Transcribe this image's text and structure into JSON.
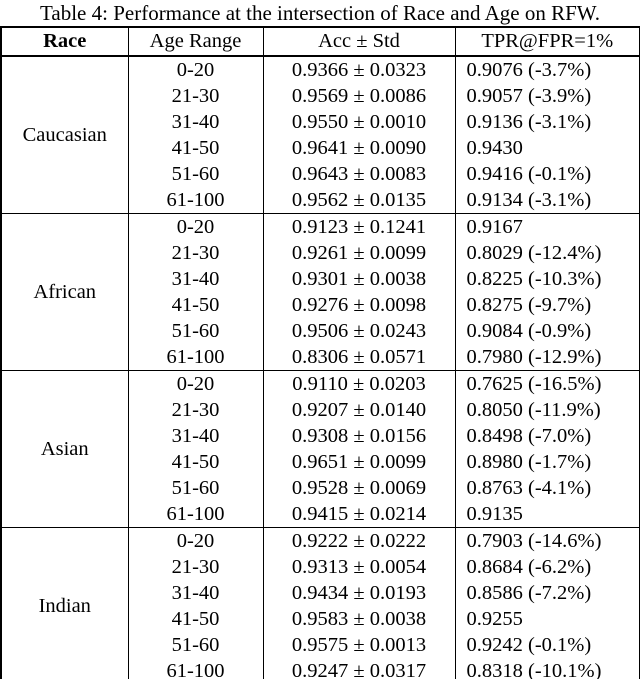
{
  "title": "Table 4: Performance at the intersection of Race and Age on RFW.",
  "table": {
    "headers": [
      "Race",
      "Age Range",
      "Acc ± Std",
      "TPR@FPR=1%"
    ],
    "groups": [
      {
        "race": "Caucasian",
        "rows": [
          {
            "age": "0-20",
            "acc": "0.9366 ± 0.0323",
            "tpr": "0.9076 (-3.7%)"
          },
          {
            "age": "21-30",
            "acc": "0.9569 ± 0.0086",
            "tpr": "0.9057 (-3.9%)"
          },
          {
            "age": "31-40",
            "acc": "0.9550 ± 0.0010",
            "tpr": "0.9136 (-3.1%)"
          },
          {
            "age": "41-50",
            "acc": "0.9641 ± 0.0090",
            "tpr": "0.9430"
          },
          {
            "age": "51-60",
            "acc": "0.9643 ± 0.0083",
            "tpr": "0.9416 (-0.1%)"
          },
          {
            "age": "61-100",
            "acc": "0.9562 ± 0.0135",
            "tpr": "0.9134 (-3.1%)"
          }
        ]
      },
      {
        "race": "African",
        "rows": [
          {
            "age": "0-20",
            "acc": "0.9123 ± 0.1241",
            "tpr": "0.9167"
          },
          {
            "age": "21-30",
            "acc": "0.9261 ± 0.0099",
            "tpr": "0.8029 (-12.4%)"
          },
          {
            "age": "31-40",
            "acc": "0.9301 ± 0.0038",
            "tpr": "0.8225 (-10.3%)"
          },
          {
            "age": "41-50",
            "acc": "0.9276 ± 0.0098",
            "tpr": "0.8275 (-9.7%)"
          },
          {
            "age": "51-60",
            "acc": "0.9506 ± 0.0243",
            "tpr": "0.9084 (-0.9%)"
          },
          {
            "age": "61-100",
            "acc": "0.8306 ± 0.0571",
            "tpr": "0.7980 (-12.9%)"
          }
        ]
      },
      {
        "race": "Asian",
        "rows": [
          {
            "age": "0-20",
            "acc": "0.9110 ± 0.0203",
            "tpr": "0.7625 (-16.5%)"
          },
          {
            "age": "21-30",
            "acc": "0.9207 ± 0.0140",
            "tpr": "0.8050 (-11.9%)"
          },
          {
            "age": "31-40",
            "acc": "0.9308 ± 0.0156",
            "tpr": "0.8498 (-7.0%)"
          },
          {
            "age": "41-50",
            "acc": "0.9651 ± 0.0099",
            "tpr": "0.8980 (-1.7%)"
          },
          {
            "age": "51-60",
            "acc": "0.9528 ± 0.0069",
            "tpr": "0.8763 (-4.1%)"
          },
          {
            "age": "61-100",
            "acc": "0.9415 ± 0.0214",
            "tpr": "0.9135"
          }
        ]
      },
      {
        "race": "Indian",
        "rows": [
          {
            "age": "0-20",
            "acc": "0.9222 ± 0.0222",
            "tpr": "0.7903 (-14.6%)"
          },
          {
            "age": "21-30",
            "acc": "0.9313 ± 0.0054",
            "tpr": "0.8684 (-6.2%)"
          },
          {
            "age": "31-40",
            "acc": "0.9434 ± 0.0193",
            "tpr": "0.8586 (-7.2%)"
          },
          {
            "age": "41-50",
            "acc": "0.9583 ± 0.0038",
            "tpr": "0.9255"
          },
          {
            "age": "51-60",
            "acc": "0.9575 ± 0.0013",
            "tpr": "0.9242 (-0.1%)"
          },
          {
            "age": "61-100",
            "acc": "0.9247 ± 0.0317",
            "tpr": "0.8318 (-10.1%)"
          }
        ]
      }
    ]
  }
}
